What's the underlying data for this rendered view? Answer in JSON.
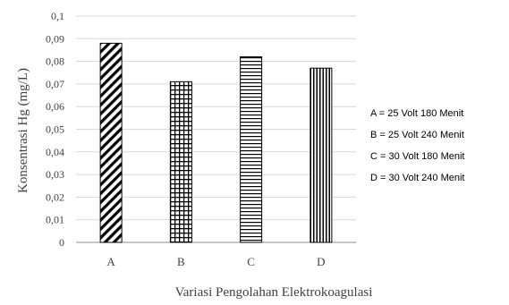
{
  "chart_data": {
    "type": "bar",
    "categories": [
      "A",
      "B",
      "C",
      "D"
    ],
    "values": [
      0.088,
      0.071,
      0.082,
      0.077
    ],
    "patterns": [
      "diagonal-hatch",
      "grid-hatch",
      "horizontal-hatch",
      "vertical-hatch"
    ],
    "ylabel": "Konsentrasi Hg  (mg/L)",
    "xlabel": "Variasi Pengolahan Elektrokoagulasi",
    "ylim": [
      0,
      0.1
    ],
    "yticks": [
      "0",
      "0,01",
      "0,02",
      "0,03",
      "0,04",
      "0,05",
      "0,06",
      "0,07",
      "0,08",
      "0,09",
      "0,1"
    ],
    "grid": true,
    "legend_position": "right",
    "legend": [
      "A = 25 Volt 180 Menit",
      "B = 25 Volt 240 Menit",
      "C = 30 Volt 180 Menit",
      "D = 30 Volt 240 Menit"
    ],
    "colors": {
      "bar_stroke": "#000000",
      "grid": "#d9d9d9",
      "axis": "#8c8c8c",
      "text": "#404040"
    }
  }
}
